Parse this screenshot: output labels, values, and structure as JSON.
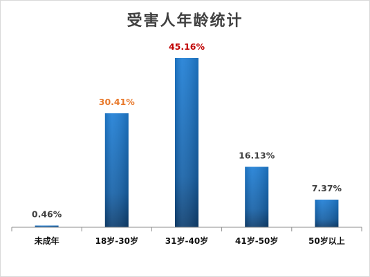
{
  "chart_data": {
    "type": "bar",
    "title": "受害人年龄统计",
    "categories": [
      "未成年",
      "18岁-30岁",
      "31岁-40岁",
      "41岁-50岁",
      "50岁以上"
    ],
    "values": [
      0.46,
      30.41,
      45.16,
      16.13,
      7.37
    ],
    "data_labels": [
      "0.46%",
      "30.41%",
      "45.16%",
      "16.13%",
      "7.37%"
    ],
    "label_colors": [
      "#404040",
      "#e8782a",
      "#c00000",
      "#404040",
      "#404040"
    ],
    "bar_color": "#1f74c4",
    "ylim": [
      0,
      45.16
    ],
    "grid": false,
    "legend": "none",
    "xlabel": "",
    "ylabel": ""
  }
}
